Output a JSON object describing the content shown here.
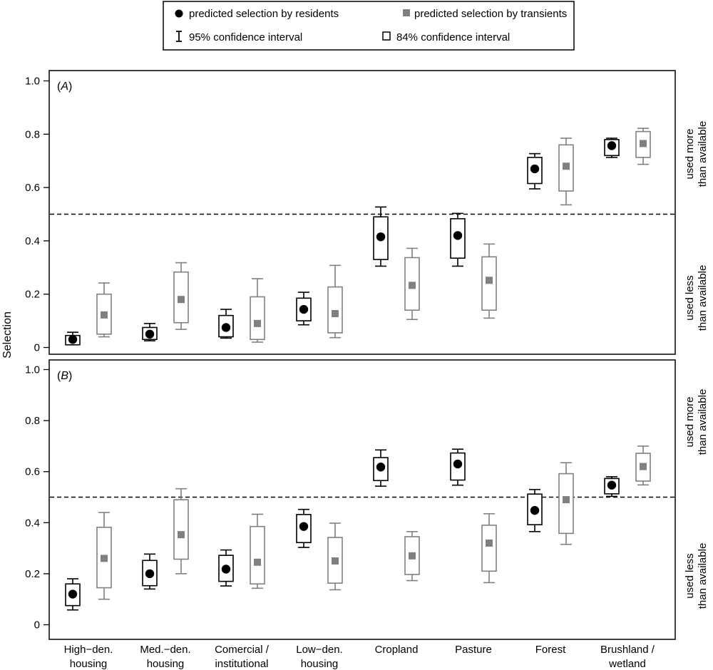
{
  "legend": {
    "resident": "predicted selection by residents",
    "transient": "predicted selection by transients",
    "ci95": "95% confidence interval",
    "ci84": "84% confidence interval"
  },
  "ylabel": "Selection",
  "right_labels": {
    "more_line1": "used more",
    "more_line2": "than available",
    "less_line1": "used less",
    "less_line2": "than available"
  },
  "colors": {
    "resident": "#000000",
    "transient": "#808080"
  },
  "chart_data": {
    "type": "box",
    "categories": [
      [
        "High−den.",
        "housing"
      ],
      [
        "Med.−den.",
        "housing"
      ],
      [
        "Comercial /",
        "institutional"
      ],
      [
        "Low−den.",
        "housing"
      ],
      [
        "Cropland",
        ""
      ],
      [
        "Pasture",
        ""
      ],
      [
        "Forest",
        ""
      ],
      [
        "Brushland /",
        "wetland"
      ]
    ],
    "yticks": [
      "0",
      "0.2",
      "0.4",
      "0.6",
      "0.8",
      "1.0"
    ],
    "ylim": [
      0,
      1.0
    ],
    "reference_line": 0.5,
    "panels": [
      {
        "label": "A",
        "series": [
          {
            "name": "residents",
            "point": [
              0.03,
              0.05,
              0.075,
              0.143,
              0.415,
              0.42,
              0.67,
              0.757
            ],
            "ci84_low": [
              0.01,
              0.03,
              0.04,
              0.1,
              0.33,
              0.335,
              0.615,
              0.72
            ],
            "ci84_high": [
              0.045,
              0.075,
              0.12,
              0.185,
              0.49,
              0.483,
              0.713,
              0.78
            ],
            "ci95_low": [
              0.01,
              0.025,
              0.035,
              0.085,
              0.305,
              0.305,
              0.595,
              0.713
            ],
            "ci95_high": [
              0.057,
              0.09,
              0.143,
              0.207,
              0.527,
              0.503,
              0.727,
              0.785
            ]
          },
          {
            "name": "transients",
            "point": [
              0.122,
              0.18,
              0.09,
              0.127,
              0.233,
              0.252,
              0.68,
              0.765
            ],
            "ci84_low": [
              0.05,
              0.093,
              0.03,
              0.055,
              0.14,
              0.14,
              0.587,
              0.713
            ],
            "ci84_high": [
              0.2,
              0.283,
              0.19,
              0.227,
              0.337,
              0.34,
              0.76,
              0.81
            ],
            "ci95_low": [
              0.04,
              0.068,
              0.02,
              0.037,
              0.105,
              0.11,
              0.535,
              0.687
            ],
            "ci95_high": [
              0.242,
              0.318,
              0.258,
              0.308,
              0.372,
              0.388,
              0.785,
              0.822
            ]
          }
        ]
      },
      {
        "label": "B",
        "series": [
          {
            "name": "residents",
            "point": [
              0.12,
              0.2,
              0.218,
              0.385,
              0.618,
              0.63,
              0.448,
              0.547
            ],
            "ci84_low": [
              0.075,
              0.153,
              0.17,
              0.322,
              0.565,
              0.567,
              0.392,
              0.513
            ],
            "ci84_high": [
              0.16,
              0.252,
              0.272,
              0.432,
              0.655,
              0.673,
              0.512,
              0.573
            ],
            "ci95_low": [
              0.058,
              0.14,
              0.152,
              0.303,
              0.543,
              0.547,
              0.365,
              0.503
            ],
            "ci95_high": [
              0.18,
              0.277,
              0.293,
              0.452,
              0.685,
              0.688,
              0.53,
              0.58
            ]
          },
          {
            "name": "transients",
            "point": [
              0.26,
              0.353,
              0.245,
              0.25,
              0.27,
              0.32,
              0.49,
              0.62
            ],
            "ci84_low": [
              0.145,
              0.257,
              0.16,
              0.163,
              0.197,
              0.21,
              0.358,
              0.563
            ],
            "ci84_high": [
              0.382,
              0.49,
              0.385,
              0.342,
              0.345,
              0.39,
              0.592,
              0.672
            ],
            "ci95_low": [
              0.1,
              0.2,
              0.143,
              0.137,
              0.173,
              0.165,
              0.315,
              0.548
            ],
            "ci95_high": [
              0.44,
              0.533,
              0.433,
              0.398,
              0.365,
              0.435,
              0.635,
              0.7
            ]
          }
        ]
      }
    ]
  }
}
